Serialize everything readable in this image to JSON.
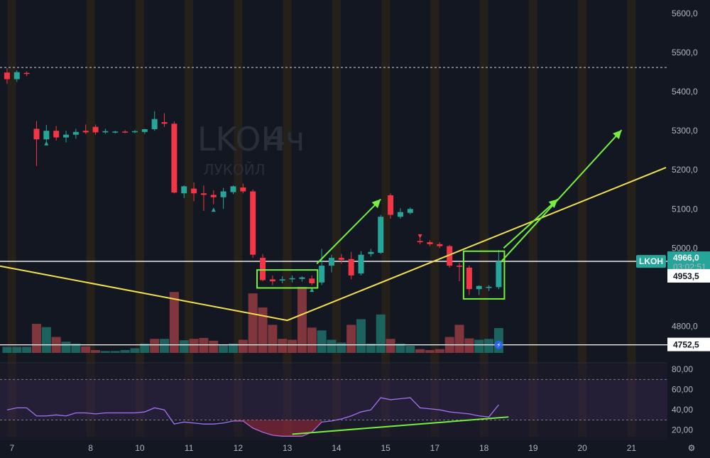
{
  "chart_data": {
    "type": "candlestick",
    "symbol": "LKOH",
    "timeframe": "4ч",
    "company": "ЛУКОЙЛ",
    "x_ticks": [
      {
        "label": "7",
        "pos": 0.5
      },
      {
        "label": "8",
        "pos": 8.5
      },
      {
        "label": "10",
        "pos": 13.5
      },
      {
        "label": "11",
        "pos": 18.5
      },
      {
        "label": "12",
        "pos": 23.5
      },
      {
        "label": "13",
        "pos": 28.5
      },
      {
        "label": "14",
        "pos": 33.5
      },
      {
        "label": "15",
        "pos": 38.5
      },
      {
        "label": "17",
        "pos": 43.5
      },
      {
        "label": "18",
        "pos": 48.5
      },
      {
        "label": "19",
        "pos": 53.5
      },
      {
        "label": "20",
        "pos": 58.5
      },
      {
        "label": "21",
        "pos": 63.5
      }
    ],
    "y_ticks": [
      "5600,0",
      "5500,0",
      "5400,0",
      "5300,0",
      "5200,0",
      "5100,0",
      "5000,0",
      "4800,0"
    ],
    "y_tick_values": [
      5600,
      5500,
      5400,
      5300,
      5200,
      5100,
      5000,
      4800
    ],
    "price_ylim": [
      4730,
      5620
    ],
    "candles": [
      {
        "o": 5449,
        "h": 5460,
        "l": 5420,
        "c": 5432
      },
      {
        "o": 5432,
        "h": 5455,
        "l": 5425,
        "c": 5450
      },
      {
        "o": 5448,
        "h": 5452,
        "l": 5440,
        "c": 5446
      },
      {
        "o": 5305,
        "h": 5325,
        "l": 5210,
        "c": 5278
      },
      {
        "o": 5278,
        "h": 5315,
        "l": 5270,
        "c": 5300
      },
      {
        "o": 5300,
        "h": 5312,
        "l": 5275,
        "c": 5283
      },
      {
        "o": 5283,
        "h": 5300,
        "l": 5270,
        "c": 5290
      },
      {
        "o": 5290,
        "h": 5305,
        "l": 5280,
        "c": 5297
      },
      {
        "o": 5300,
        "h": 5316,
        "l": 5292,
        "c": 5296
      },
      {
        "o": 5310,
        "h": 5316,
        "l": 5290,
        "c": 5296
      },
      {
        "o": 5296,
        "h": 5305,
        "l": 5292,
        "c": 5299
      },
      {
        "o": 5296,
        "h": 5300,
        "l": 5293,
        "c": 5298
      },
      {
        "o": 5298,
        "h": 5302,
        "l": 5294,
        "c": 5297
      },
      {
        "o": 5298,
        "h": 5302,
        "l": 5294,
        "c": 5299
      },
      {
        "o": 5297,
        "h": 5305,
        "l": 5292,
        "c": 5304
      },
      {
        "o": 5304,
        "h": 5350,
        "l": 5300,
        "c": 5330
      },
      {
        "o": 5322,
        "h": 5345,
        "l": 5310,
        "c": 5318
      },
      {
        "o": 5318,
        "h": 5324,
        "l": 5140,
        "c": 5142
      },
      {
        "o": 5140,
        "h": 5160,
        "l": 5128,
        "c": 5158
      },
      {
        "o": 5152,
        "h": 5168,
        "l": 5120,
        "c": 5140
      },
      {
        "o": 5140,
        "h": 5160,
        "l": 5095,
        "c": 5136
      },
      {
        "o": 5136,
        "h": 5148,
        "l": 5112,
        "c": 5130
      },
      {
        "o": 5130,
        "h": 5154,
        "l": 5100,
        "c": 5145
      },
      {
        "o": 5143,
        "h": 5160,
        "l": 5138,
        "c": 5158
      },
      {
        "o": 5155,
        "h": 5165,
        "l": 5140,
        "c": 5145
      },
      {
        "o": 5145,
        "h": 5150,
        "l": 4975,
        "c": 4983
      },
      {
        "o": 4975,
        "h": 4985,
        "l": 4915,
        "c": 4918
      },
      {
        "o": 4920,
        "h": 4930,
        "l": 4905,
        "c": 4915
      },
      {
        "o": 4917,
        "h": 4928,
        "l": 4910,
        "c": 4920
      },
      {
        "o": 4920,
        "h": 4930,
        "l": 4912,
        "c": 4923
      },
      {
        "o": 4921,
        "h": 4928,
        "l": 4914,
        "c": 4925
      },
      {
        "o": 4922,
        "h": 4930,
        "l": 4905,
        "c": 4910
      },
      {
        "o": 4912,
        "h": 4998,
        "l": 4905,
        "c": 4955
      },
      {
        "o": 4955,
        "h": 4983,
        "l": 4938,
        "c": 4975
      },
      {
        "o": 4975,
        "h": 4985,
        "l": 4960,
        "c": 4970
      },
      {
        "o": 4972,
        "h": 4990,
        "l": 4920,
        "c": 4930
      },
      {
        "o": 4935,
        "h": 4992,
        "l": 4930,
        "c": 4983
      },
      {
        "o": 4985,
        "h": 4998,
        "l": 4978,
        "c": 4990
      },
      {
        "o": 4988,
        "h": 5085,
        "l": 4985,
        "c": 5080
      },
      {
        "o": 5135,
        "h": 5140,
        "l": 5075,
        "c": 5085
      },
      {
        "o": 5080,
        "h": 5102,
        "l": 5075,
        "c": 5092
      },
      {
        "o": 5090,
        "h": 5104,
        "l": 5086,
        "c": 5100
      },
      {
        "o": 5018,
        "h": 5025,
        "l": 5010,
        "c": 5015
      },
      {
        "o": 5015,
        "h": 5020,
        "l": 5005,
        "c": 5010
      },
      {
        "o": 5010,
        "h": 5015,
        "l": 5000,
        "c": 5005
      },
      {
        "o": 5005,
        "h": 5008,
        "l": 4950,
        "c": 4955
      },
      {
        "o": 4955,
        "h": 4962,
        "l": 4915,
        "c": 4952
      },
      {
        "o": 4950,
        "h": 4955,
        "l": 4880,
        "c": 4895
      },
      {
        "o": 4895,
        "h": 4905,
        "l": 4880,
        "c": 4903
      },
      {
        "o": 4898,
        "h": 4905,
        "l": 4890,
        "c": 4901
      },
      {
        "o": 4900,
        "h": 4995,
        "l": 4895,
        "c": 4966
      }
    ],
    "volumes": [
      {
        "v": 0.13,
        "up": true
      },
      {
        "v": 0.13,
        "up": true
      },
      {
        "v": 0.13,
        "up": true
      },
      {
        "v": 0.62,
        "up": false
      },
      {
        "v": 0.55,
        "up": true
      },
      {
        "v": 0.34,
        "up": false
      },
      {
        "v": 0.24,
        "up": true
      },
      {
        "v": 0.2,
        "up": true
      },
      {
        "v": 0.14,
        "up": false
      },
      {
        "v": 0.06,
        "up": false
      },
      {
        "v": 0.04,
        "up": true
      },
      {
        "v": 0.04,
        "up": true
      },
      {
        "v": 0.06,
        "up": true
      },
      {
        "v": 0.1,
        "up": true
      },
      {
        "v": 0.2,
        "up": true
      },
      {
        "v": 0.3,
        "up": false
      },
      {
        "v": 0.3,
        "up": true
      },
      {
        "v": 1.3,
        "up": false
      },
      {
        "v": 0.27,
        "up": true
      },
      {
        "v": 0.3,
        "up": false
      },
      {
        "v": 0.32,
        "up": false
      },
      {
        "v": 0.26,
        "up": false
      },
      {
        "v": 0.16,
        "up": true
      },
      {
        "v": 0.2,
        "up": true
      },
      {
        "v": 0.28,
        "up": false
      },
      {
        "v": 1.27,
        "up": false
      },
      {
        "v": 0.97,
        "up": false
      },
      {
        "v": 0.6,
        "up": false
      },
      {
        "v": 0.3,
        "up": false
      },
      {
        "v": 0.28,
        "up": false
      },
      {
        "v": 1.41,
        "up": false
      },
      {
        "v": 0.54,
        "up": false
      },
      {
        "v": 0.48,
        "up": true
      },
      {
        "v": 0.28,
        "up": true
      },
      {
        "v": 0.22,
        "up": true
      },
      {
        "v": 0.6,
        "up": false
      },
      {
        "v": 0.72,
        "up": true
      },
      {
        "v": 0.2,
        "up": true
      },
      {
        "v": 0.82,
        "up": true
      },
      {
        "v": 0.3,
        "up": false
      },
      {
        "v": 0.2,
        "up": true
      },
      {
        "v": 0.15,
        "up": true
      },
      {
        "v": 0.08,
        "up": false
      },
      {
        "v": 0.06,
        "up": false
      },
      {
        "v": 0.08,
        "up": false
      },
      {
        "v": 0.34,
        "up": false
      },
      {
        "v": 0.6,
        "up": false
      },
      {
        "v": 0.31,
        "up": false
      },
      {
        "v": 0.28,
        "up": true
      },
      {
        "v": 0.3,
        "up": true
      },
      {
        "v": 0.53,
        "up": true
      }
    ],
    "rsi": {
      "y_ticks": [
        "80,00",
        "60,00",
        "40,00",
        "20,00"
      ],
      "y_tick_values": [
        80,
        60,
        40,
        20
      ],
      "levels": [
        70,
        30
      ],
      "ylim": [
        10,
        85
      ],
      "values": [
        40,
        42,
        42,
        34,
        34,
        35,
        34,
        37,
        37,
        36,
        37,
        37,
        37,
        37,
        38,
        42,
        40,
        26,
        28,
        27,
        26,
        26,
        27,
        29,
        29,
        22,
        18,
        15,
        14,
        14,
        14,
        18,
        28,
        29,
        31,
        34,
        38,
        40,
        52,
        50,
        51,
        52,
        42,
        41,
        40,
        38,
        37,
        36,
        34,
        33,
        45
      ]
    },
    "price_labels": {
      "last": "4966,0",
      "countdown": "03:02:51",
      "level_1": "4953,5",
      "level_2": "4752,5"
    },
    "level_values": {
      "last": 4966,
      "level_1": 4953.5,
      "level_2": 4752.5,
      "resistance": 5462
    },
    "sessions": [
      0.5,
      8.5,
      13.5,
      18.5,
      23.5,
      28.5,
      33.5,
      38.5,
      43.5,
      48.5,
      53.5,
      58.5,
      63.5
    ],
    "colors": {
      "up": "#26a69a",
      "down": "#f23645",
      "volume_up": "#1e6b67",
      "volume_down": "#8e3a40",
      "rsi_line": "#a272f2",
      "trendline_yellow": "#f4e04d",
      "annotation_green": "#76f03c",
      "session_band": "#2d2419",
      "level_white": "#ffffff"
    }
  }
}
